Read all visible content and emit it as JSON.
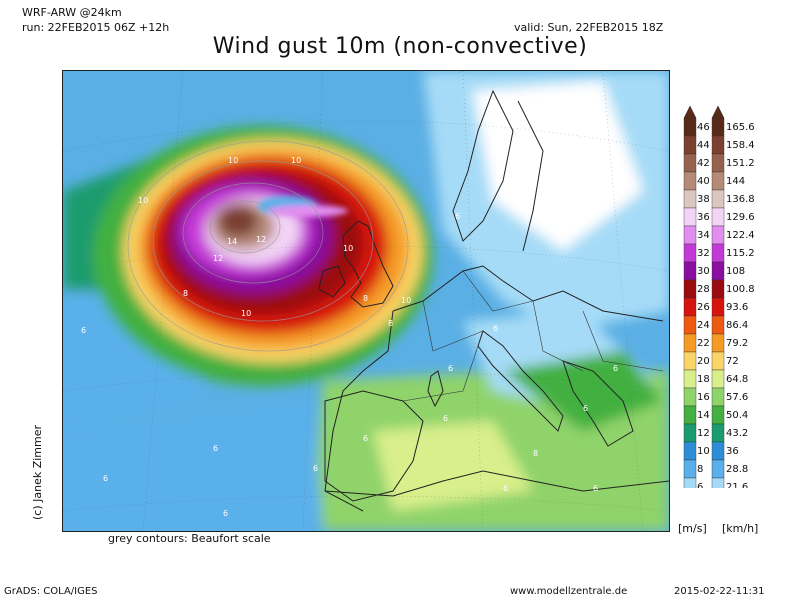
{
  "header": {
    "model": "WRF-ARW @24km",
    "run": "run: 22FEB2015 06Z +12h",
    "valid": "valid: Sun, 22FEB2015 18Z",
    "title": "Wind gust 10m (non-convective)"
  },
  "map": {
    "note": "grey contours: Beaufort scale",
    "beaufort_labels": [
      "12",
      "14",
      "12",
      "10",
      "10",
      "10",
      "10",
      "8",
      "6",
      "8",
      "6",
      "6",
      "10",
      "10",
      "8",
      "6",
      "6",
      "6",
      "8",
      "6",
      "6",
      "6",
      "6",
      "8",
      "6",
      "6",
      "6",
      "6",
      "6",
      "6"
    ]
  },
  "legend": {
    "units_ms": "[m/s]",
    "units_kmh": "[km/h]",
    "bins": [
      {
        "ms": "46",
        "kmh": "165.6",
        "color": "#5a2a18"
      },
      {
        "ms": "44",
        "kmh": "158.4",
        "color": "#7a4030"
      },
      {
        "ms": "42",
        "kmh": "151.2",
        "color": "#96624e"
      },
      {
        "ms": "40",
        "kmh": "144",
        "color": "#b58a77"
      },
      {
        "ms": "38",
        "kmh": "136.8",
        "color": "#dcc7bf"
      },
      {
        "ms": "36",
        "kmh": "129.6",
        "color": "#f3d4f6"
      },
      {
        "ms": "34",
        "kmh": "122.4",
        "color": "#e28df0"
      },
      {
        "ms": "32",
        "kmh": "115.2",
        "color": "#c43ad8"
      },
      {
        "ms": "30",
        "kmh": "108",
        "color": "#8a0e9f"
      },
      {
        "ms": "28",
        "kmh": "100.8",
        "color": "#9a0b10"
      },
      {
        "ms": "26",
        "kmh": "93.6",
        "color": "#d7130d"
      },
      {
        "ms": "24",
        "kmh": "86.4",
        "color": "#ef5a13"
      },
      {
        "ms": "22",
        "kmh": "79.2",
        "color": "#f59b25"
      },
      {
        "ms": "20",
        "kmh": "72",
        "color": "#f9d466"
      },
      {
        "ms": "18",
        "kmh": "64.8",
        "color": "#d8ef8b"
      },
      {
        "ms": "16",
        "kmh": "57.6",
        "color": "#8fd36b"
      },
      {
        "ms": "14",
        "kmh": "50.4",
        "color": "#43b041"
      },
      {
        "ms": "12",
        "kmh": "43.2",
        "color": "#1a9c6e"
      },
      {
        "ms": "10",
        "kmh": "36",
        "color": "#2d8ed7"
      },
      {
        "ms": "8",
        "kmh": "28.8",
        "color": "#5ab0ea"
      },
      {
        "ms": "6",
        "kmh": "21.6",
        "color": "#a6dbf7"
      }
    ]
  },
  "footer": {
    "author": "(c) Janek Zimmer",
    "software": "GrADS: COLA/IGES",
    "site": "www.modellzentrale.de",
    "timestamp": "2015-02-22-11:31"
  }
}
